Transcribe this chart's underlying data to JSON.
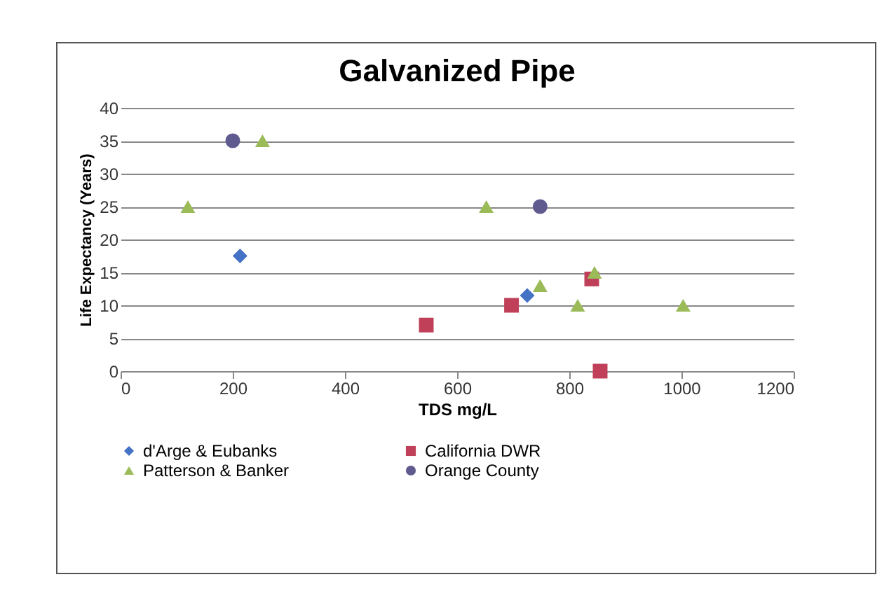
{
  "chart_data": {
    "type": "scatter",
    "title": "Galvanized Pipe",
    "xlabel": "TDS mg/L",
    "ylabel": "Life Expectancy (Years)",
    "xlim": [
      0,
      1200
    ],
    "xticks": [
      0,
      200,
      400,
      600,
      800,
      1000,
      1200
    ],
    "ylim": [
      0,
      40
    ],
    "yticks": [
      0,
      5,
      10,
      15,
      20,
      25,
      30,
      35,
      40
    ],
    "grid": "y",
    "legend": "bottom",
    "series": [
      {
        "name": "d'Arge & Eubanks",
        "color": "#4472c4",
        "marker": "diamond",
        "x": [
          213,
          725
        ],
        "values": [
          17.5,
          11.5
        ]
      },
      {
        "name": "California DWR",
        "color": "#c0405a",
        "marker": "square",
        "x": [
          545,
          697,
          840,
          855
        ],
        "values": [
          7,
          10,
          14,
          0
        ]
      },
      {
        "name": "Patterson & Banker",
        "color": "#9bbb59",
        "marker": "triangle",
        "x": [
          120,
          253,
          652,
          748,
          815,
          845,
          1003
        ],
        "values": [
          25,
          35,
          25,
          13,
          10,
          15,
          10
        ]
      },
      {
        "name": "Orange County",
        "color": "#5f5b8f",
        "marker": "circle",
        "x": [
          200,
          748
        ],
        "values": [
          35,
          25
        ]
      }
    ]
  }
}
